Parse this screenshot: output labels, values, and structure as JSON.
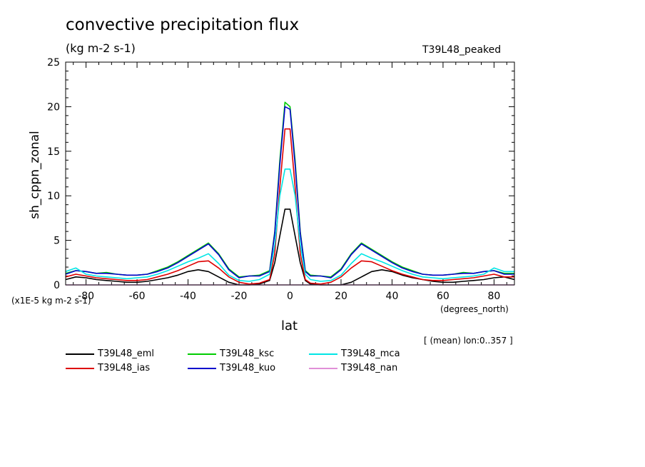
{
  "chart_data": {
    "type": "line",
    "title": "convective precipitation flux",
    "units": "(kg m-2 s-1)",
    "run_label": "T39L48_peaked",
    "ylabel": "sh_cppn_zonal",
    "xlabel": "lat",
    "x_units": "(degrees_north)",
    "y_scale_note": "(x1E-5 kg m-2 s-1)",
    "averaging_note": "[ (mean) lon:0..357 ]",
    "xlim": [
      -88,
      88
    ],
    "ylim": [
      0,
      25
    ],
    "x_ticks": [
      -80,
      -60,
      -40,
      -20,
      0,
      20,
      40,
      60,
      80
    ],
    "x_tick_labels": [
      "-80",
      "-60",
      "-40",
      "-20",
      "0",
      "20",
      "40",
      "60",
      "80"
    ],
    "y_ticks": [
      0,
      5,
      10,
      15,
      20,
      25
    ],
    "y_tick_labels": [
      "0",
      "5",
      "10",
      "15",
      "20",
      "25"
    ],
    "x": [
      -88,
      -84,
      -80,
      -76,
      -72,
      -68,
      -64,
      -60,
      -56,
      -52,
      -48,
      -44,
      -40,
      -36,
      -32,
      -28,
      -24,
      -20,
      -16,
      -12,
      -8,
      -6,
      -4,
      -2,
      0,
      2,
      4,
      6,
      8,
      12,
      16,
      20,
      24,
      28,
      32,
      36,
      40,
      44,
      48,
      52,
      56,
      60,
      64,
      68,
      72,
      76,
      80,
      84,
      88
    ],
    "series": [
      {
        "name": "T39L48_eml",
        "color": "#000000",
        "values": [
          0.6,
          0.9,
          0.8,
          0.6,
          0.5,
          0.4,
          0.3,
          0.3,
          0.4,
          0.6,
          0.8,
          1.1,
          1.5,
          1.7,
          1.5,
          0.9,
          0.3,
          0.0,
          0.0,
          0.1,
          0.5,
          2.5,
          5.5,
          8.5,
          8.5,
          5.5,
          2.5,
          0.5,
          0.1,
          0.0,
          0.0,
          0.0,
          0.3,
          0.9,
          1.5,
          1.7,
          1.5,
          1.1,
          0.8,
          0.6,
          0.4,
          0.3,
          0.3,
          0.4,
          0.5,
          0.6,
          0.8,
          0.9,
          0.6
        ]
      },
      {
        "name": "T39L48_ias",
        "color": "#dd0000",
        "values": [
          0.9,
          1.2,
          1.0,
          0.8,
          0.7,
          0.6,
          0.5,
          0.5,
          0.6,
          0.9,
          1.2,
          1.6,
          2.1,
          2.6,
          2.7,
          1.9,
          0.9,
          0.3,
          0.1,
          0.2,
          0.6,
          3.5,
          11.0,
          17.5,
          17.5,
          11.0,
          3.5,
          0.6,
          0.2,
          0.1,
          0.3,
          0.9,
          1.9,
          2.7,
          2.6,
          2.1,
          1.6,
          1.2,
          0.9,
          0.6,
          0.5,
          0.5,
          0.6,
          0.7,
          0.8,
          1.0,
          1.2,
          0.9,
          0.9
        ]
      },
      {
        "name": "T39L48_ksc",
        "color": "#00cc00",
        "values": [
          1.3,
          1.6,
          1.5,
          1.3,
          1.4,
          1.2,
          1.1,
          1.1,
          1.2,
          1.6,
          2.0,
          2.6,
          3.3,
          4.0,
          4.7,
          3.5,
          1.8,
          0.9,
          1.0,
          1.1,
          1.6,
          6.0,
          14.0,
          20.5,
          20.0,
          14.0,
          6.0,
          1.6,
          1.1,
          1.0,
          0.9,
          1.8,
          3.5,
          4.7,
          4.0,
          3.3,
          2.6,
          2.0,
          1.6,
          1.2,
          1.1,
          1.1,
          1.2,
          1.4,
          1.3,
          1.5,
          1.6,
          1.3,
          1.3
        ]
      },
      {
        "name": "T39L48_kuo",
        "color": "#0000cc",
        "values": [
          1.2,
          1.6,
          1.5,
          1.3,
          1.3,
          1.2,
          1.1,
          1.1,
          1.2,
          1.5,
          1.9,
          2.5,
          3.2,
          3.9,
          4.6,
          3.4,
          1.7,
          0.8,
          1.0,
          1.0,
          1.5,
          5.8,
          13.5,
          20.0,
          19.7,
          13.5,
          5.8,
          1.5,
          1.0,
          1.0,
          0.8,
          1.7,
          3.4,
          4.6,
          3.9,
          3.2,
          2.5,
          1.9,
          1.5,
          1.2,
          1.1,
          1.1,
          1.2,
          1.3,
          1.3,
          1.5,
          1.6,
          1.2,
          1.2
        ]
      },
      {
        "name": "T39L48_mca",
        "color": "#00e5e5",
        "values": [
          1.5,
          1.9,
          1.2,
          1.0,
          0.9,
          0.8,
          0.7,
          0.8,
          0.9,
          1.2,
          1.6,
          2.1,
          2.6,
          3.0,
          3.5,
          2.4,
          1.1,
          0.5,
          0.4,
          0.6,
          1.2,
          4.5,
          10.0,
          13.0,
          13.0,
          10.0,
          4.5,
          1.2,
          0.6,
          0.4,
          0.5,
          1.1,
          2.4,
          3.5,
          3.0,
          2.6,
          2.1,
          1.6,
          1.2,
          0.9,
          0.8,
          0.7,
          0.8,
          0.9,
          1.0,
          1.2,
          1.9,
          1.5,
          1.5
        ]
      },
      {
        "name": "T39L48_nan",
        "color": "#e090d8",
        "values": [
          0,
          0,
          0,
          0,
          0,
          0,
          0,
          0,
          0,
          0,
          0,
          0,
          0,
          0,
          0,
          0,
          0,
          0,
          0,
          0,
          0,
          0,
          0,
          0,
          0,
          0,
          0,
          0,
          0,
          0,
          0,
          0,
          0,
          0,
          0,
          0,
          0,
          0,
          0,
          0,
          0,
          0,
          0,
          0,
          0,
          0,
          0,
          0,
          0
        ]
      }
    ],
    "grid": false,
    "legend_placement": "below"
  }
}
